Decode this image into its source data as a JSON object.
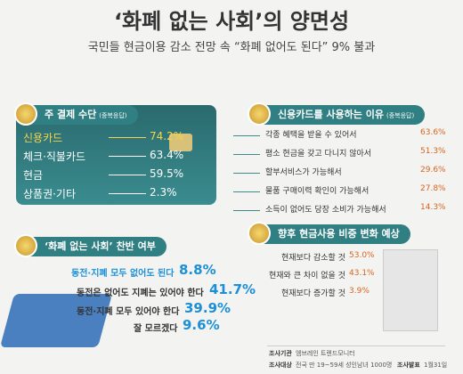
{
  "header": {
    "title": "‘화폐 없는 사회’의 양면성",
    "subtitle": "국민들 현금이용 감소 전망 속 “화폐 없어도 된다” 9% 불과"
  },
  "payment": {
    "title": "주 결제 수단",
    "note": "(중복응답)",
    "items": [
      {
        "label": "신용카드",
        "value": "74.2%"
      },
      {
        "label": "체크·직불카드",
        "value": "63.4%"
      },
      {
        "label": "현금",
        "value": "59.5%"
      },
      {
        "label": "상품권·기타",
        "value": "2.3%"
      }
    ]
  },
  "reasons": {
    "title": "신용카드를 사용하는 이유",
    "note": "(중복응답)",
    "items": [
      {
        "label": "각종 혜택을 받을 수 있어서",
        "value": "63.6%"
      },
      {
        "label": "평소 현금을 갖고 다니지 않아서",
        "value": "51.3%"
      },
      {
        "label": "할부서비스가 가능해서",
        "value": "29.6%"
      },
      {
        "label": "물품 구매이력 확인이 가능해서",
        "value": "27.8%"
      },
      {
        "label": "소득이 없어도 당장 소비가 가능해서",
        "value": "14.3%"
      }
    ]
  },
  "opinion": {
    "title": "‘화폐 없는 사회’ 찬반 여부",
    "items": [
      {
        "label": "동전·지폐 모두 없어도 된다",
        "value": "8.8%"
      },
      {
        "label": "동전은 없어도 지폐는 있어야 한다",
        "value": "41.7%"
      },
      {
        "label": "동전·지폐 모두 있어야 한다",
        "value": "39.9%"
      },
      {
        "label": "잘 모르겠다",
        "value": "9.6%"
      }
    ]
  },
  "outlook": {
    "title": "향후 현금사용 비중 변화 예상",
    "items": [
      {
        "label": "현재보다 감소할 것",
        "value": "53.0%"
      },
      {
        "label": "현재와 큰 차이 없을 것",
        "value": "43.1%"
      },
      {
        "label": "현재보다 증가할 것",
        "value": "3.9%"
      }
    ]
  },
  "footer": [
    {
      "label": "조사기관",
      "value": "엠브레인 트렌드모니터"
    },
    {
      "label": "조사대상",
      "value": "전국 만 19~59세 성인남녀 1000명"
    },
    {
      "label": "조사발표",
      "value": "1월31일"
    }
  ]
}
